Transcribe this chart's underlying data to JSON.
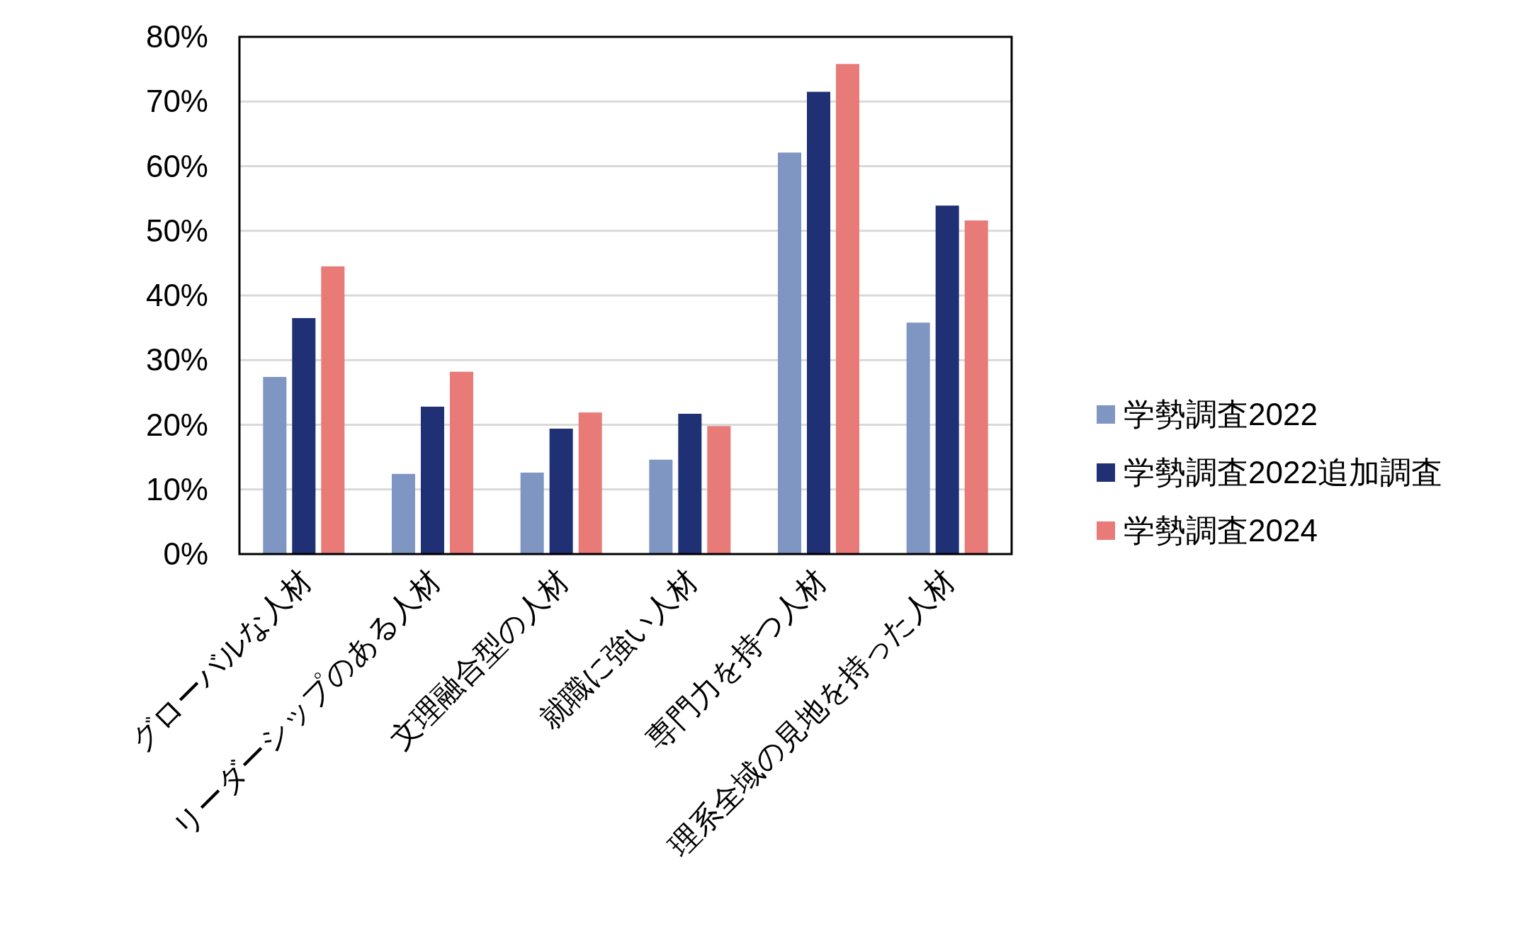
{
  "chart_data": {
    "type": "bar",
    "categories": [
      "グローバルな人材",
      "リーダーシップのある人材",
      "文理融合型の人材",
      "就職に強い人材",
      "専門力を持つ人材",
      "理系全域の見地を持った人材"
    ],
    "series": [
      {
        "name": "学勢調査2022",
        "color": "#7f96c2",
        "values": [
          27.4,
          12.4,
          12.6,
          14.6,
          62.1,
          35.8
        ]
      },
      {
        "name": "学勢調査2022追加調査",
        "color": "#1f3075",
        "values": [
          36.5,
          22.8,
          19.4,
          21.7,
          71.5,
          53.9
        ]
      },
      {
        "name": "学勢調査2024",
        "color": "#e87a78",
        "values": [
          44.5,
          28.2,
          21.9,
          19.8,
          75.8,
          51.6
        ]
      }
    ],
    "ylim": [
      0,
      80
    ],
    "yticks": [
      {
        "value": 0,
        "label": "0%"
      },
      {
        "value": 10,
        "label": "10%"
      },
      {
        "value": 20,
        "label": "20%"
      },
      {
        "value": 30,
        "label": "30%"
      },
      {
        "value": 40,
        "label": "40%"
      },
      {
        "value": 50,
        "label": "50%"
      },
      {
        "value": 60,
        "label": "60%"
      },
      {
        "value": 70,
        "label": "70%"
      },
      {
        "value": 80,
        "label": "80%"
      }
    ],
    "grid": "y",
    "legend": "right"
  }
}
